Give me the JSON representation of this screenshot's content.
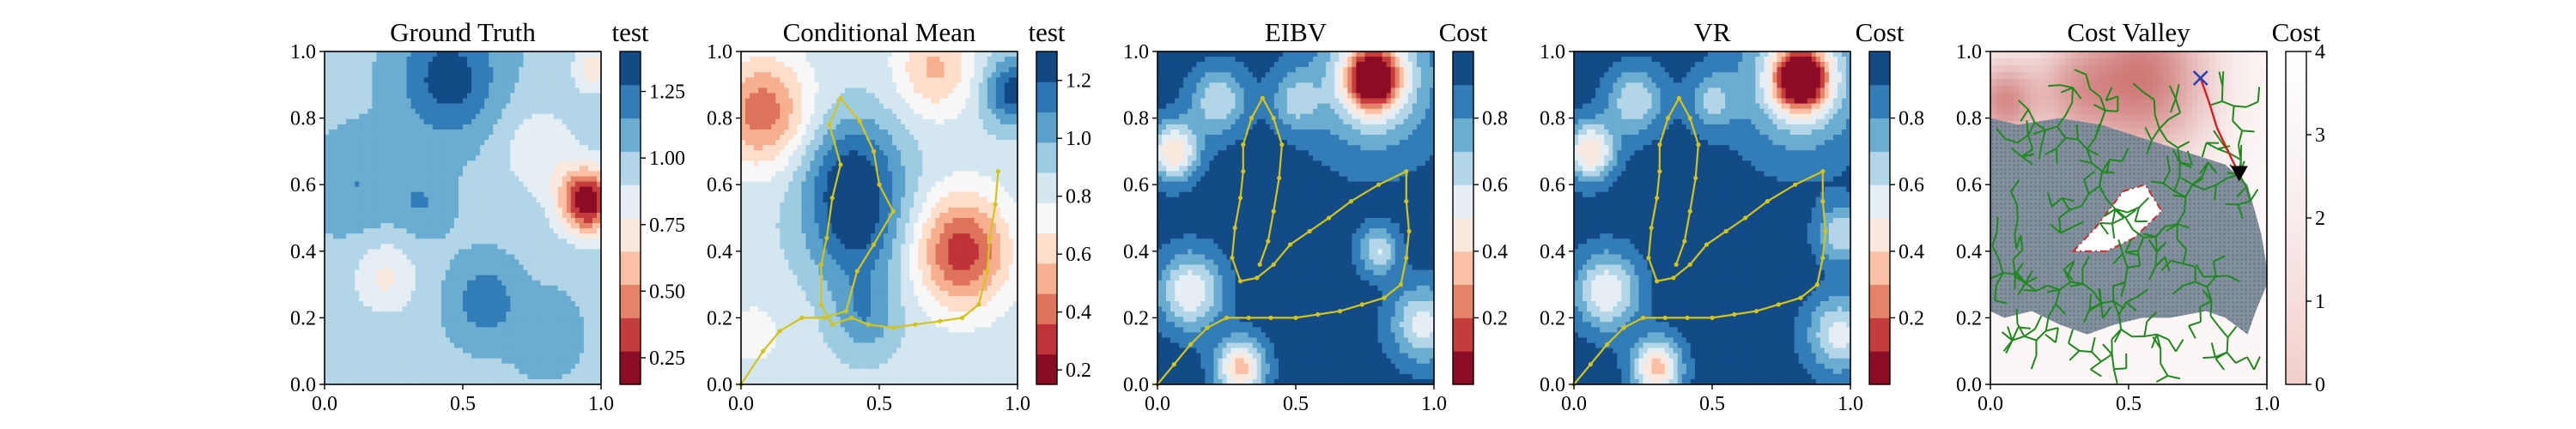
{
  "colors": {
    "rdbu": [
      "#67001f",
      "#b2182b",
      "#d6604d",
      "#f4a582",
      "#fddbc7",
      "#f7f7f7",
      "#d1e5f0",
      "#92c5de",
      "#4393c3",
      "#2166ac",
      "#053061"
    ],
    "path": "#d4c41a",
    "tree": "#1e8a1e",
    "obstacle": "#d62728",
    "mask": "#708090",
    "cost_low": "#ffffff",
    "cost_high": "#c0504d"
  },
  "icons": {
    "target": "x-marker-icon",
    "agent": "triangle-down-marker-icon"
  },
  "chart_data": [
    {
      "type": "heatmap",
      "title": "Ground Truth",
      "xlim": [
        0,
        1
      ],
      "ylim": [
        0,
        1
      ],
      "xticks": [
        "0.0",
        "0.5",
        "1.0"
      ],
      "yticks": [
        "0.0",
        "0.2",
        "0.4",
        "0.6",
        "0.8",
        "1.0"
      ],
      "colorbar": {
        "title": "test",
        "range": [
          0.15,
          1.4
        ],
        "levels": 10,
        "ticks": [
          {
            "value": 0.25,
            "label": "0.25"
          },
          {
            "value": 0.5,
            "label": "0.50"
          },
          {
            "value": 0.75,
            "label": "0.75"
          },
          {
            "value": 1.0,
            "label": "1.00"
          },
          {
            "value": 1.25,
            "label": "1.25"
          }
        ]
      }
    },
    {
      "type": "heatmap",
      "title": "Conditional Mean",
      "xlim": [
        0,
        1
      ],
      "ylim": [
        0,
        1
      ],
      "xticks": [
        "0.0",
        "0.5",
        "1.0"
      ],
      "yticks": [
        "0.0",
        "0.2",
        "0.4",
        "0.6",
        "0.8",
        "1.0"
      ],
      "colorbar": {
        "title": "test",
        "range": [
          0.15,
          1.3
        ],
        "levels": 11,
        "ticks": [
          {
            "value": 0.2,
            "label": "0.2"
          },
          {
            "value": 0.4,
            "label": "0.4"
          },
          {
            "value": 0.6,
            "label": "0.6"
          },
          {
            "value": 0.8,
            "label": "0.8"
          },
          {
            "value": 1.0,
            "label": "1.0"
          },
          {
            "value": 1.2,
            "label": "1.2"
          }
        ]
      },
      "path": [
        [
          0.0,
          0.0
        ],
        [
          0.08,
          0.1
        ],
        [
          0.14,
          0.16
        ],
        [
          0.22,
          0.2
        ],
        [
          0.3,
          0.2
        ],
        [
          0.38,
          0.22
        ],
        [
          0.42,
          0.34
        ],
        [
          0.48,
          0.42
        ],
        [
          0.55,
          0.52
        ],
        [
          0.5,
          0.6
        ],
        [
          0.48,
          0.7
        ],
        [
          0.43,
          0.79
        ],
        [
          0.36,
          0.86
        ],
        [
          0.32,
          0.78
        ],
        [
          0.36,
          0.66
        ],
        [
          0.33,
          0.56
        ],
        [
          0.31,
          0.44
        ],
        [
          0.29,
          0.36
        ],
        [
          0.29,
          0.24
        ],
        [
          0.33,
          0.18
        ],
        [
          0.4,
          0.2
        ],
        [
          0.46,
          0.18
        ],
        [
          0.55,
          0.17
        ],
        [
          0.63,
          0.18
        ],
        [
          0.72,
          0.19
        ],
        [
          0.8,
          0.2
        ],
        [
          0.86,
          0.24
        ],
        [
          0.89,
          0.34
        ],
        [
          0.9,
          0.44
        ],
        [
          0.92,
          0.54
        ],
        [
          0.93,
          0.64
        ]
      ]
    },
    {
      "type": "heatmap",
      "title": "EIBV",
      "xlim": [
        0,
        1
      ],
      "ylim": [
        0,
        1
      ],
      "xticks": [
        "0.0",
        "0.5",
        "1.0"
      ],
      "yticks": [
        "0.0",
        "0.2",
        "0.4",
        "0.6",
        "0.8",
        "1.0"
      ],
      "colorbar": {
        "title": "Cost",
        "range": [
          0.0,
          1.0
        ],
        "levels": 10,
        "ticks": [
          {
            "value": 0.2,
            "label": "0.2"
          },
          {
            "value": 0.4,
            "label": "0.4"
          },
          {
            "value": 0.6,
            "label": "0.6"
          },
          {
            "value": 0.8,
            "label": "0.8"
          }
        ]
      },
      "path": [
        [
          0.0,
          0.0
        ],
        [
          0.06,
          0.06
        ],
        [
          0.12,
          0.12
        ],
        [
          0.18,
          0.17
        ],
        [
          0.25,
          0.2
        ],
        [
          0.33,
          0.2
        ],
        [
          0.41,
          0.2
        ],
        [
          0.5,
          0.2
        ],
        [
          0.58,
          0.21
        ],
        [
          0.66,
          0.22
        ],
        [
          0.74,
          0.24
        ],
        [
          0.82,
          0.26
        ],
        [
          0.88,
          0.3
        ],
        [
          0.9,
          0.38
        ],
        [
          0.91,
          0.46
        ],
        [
          0.9,
          0.55
        ],
        [
          0.9,
          0.64
        ],
        [
          0.8,
          0.6
        ],
        [
          0.7,
          0.55
        ],
        [
          0.62,
          0.5
        ],
        [
          0.55,
          0.46
        ],
        [
          0.48,
          0.42
        ],
        [
          0.42,
          0.36
        ],
        [
          0.36,
          0.32
        ],
        [
          0.3,
          0.31
        ],
        [
          0.27,
          0.38
        ],
        [
          0.28,
          0.47
        ],
        [
          0.3,
          0.56
        ],
        [
          0.31,
          0.64
        ],
        [
          0.31,
          0.72
        ],
        [
          0.34,
          0.8
        ],
        [
          0.38,
          0.86
        ],
        [
          0.42,
          0.8
        ],
        [
          0.45,
          0.72
        ],
        [
          0.44,
          0.62
        ],
        [
          0.42,
          0.52
        ],
        [
          0.4,
          0.43
        ],
        [
          0.37,
          0.36
        ]
      ]
    },
    {
      "type": "heatmap",
      "title": "VR",
      "xlim": [
        0,
        1
      ],
      "ylim": [
        0,
        1
      ],
      "xticks": [
        "0.0",
        "0.5",
        "1.0"
      ],
      "yticks": [
        "0.0",
        "0.2",
        "0.4",
        "0.6",
        "0.8",
        "1.0"
      ],
      "colorbar": {
        "title": "Cost",
        "range": [
          0.0,
          1.0
        ],
        "levels": 10,
        "ticks": [
          {
            "value": 0.2,
            "label": "0.2"
          },
          {
            "value": 0.4,
            "label": "0.4"
          },
          {
            "value": 0.6,
            "label": "0.6"
          },
          {
            "value": 0.8,
            "label": "0.8"
          }
        ]
      },
      "path": [
        [
          0.0,
          0.0
        ],
        [
          0.06,
          0.06
        ],
        [
          0.12,
          0.12
        ],
        [
          0.18,
          0.17
        ],
        [
          0.25,
          0.2
        ],
        [
          0.33,
          0.2
        ],
        [
          0.41,
          0.2
        ],
        [
          0.5,
          0.2
        ],
        [
          0.58,
          0.21
        ],
        [
          0.66,
          0.22
        ],
        [
          0.74,
          0.24
        ],
        [
          0.82,
          0.26
        ],
        [
          0.88,
          0.3
        ],
        [
          0.9,
          0.38
        ],
        [
          0.91,
          0.46
        ],
        [
          0.9,
          0.55
        ],
        [
          0.9,
          0.64
        ],
        [
          0.8,
          0.6
        ],
        [
          0.7,
          0.55
        ],
        [
          0.62,
          0.5
        ],
        [
          0.55,
          0.46
        ],
        [
          0.48,
          0.42
        ],
        [
          0.42,
          0.36
        ],
        [
          0.36,
          0.32
        ],
        [
          0.3,
          0.31
        ],
        [
          0.27,
          0.38
        ],
        [
          0.28,
          0.47
        ],
        [
          0.3,
          0.56
        ],
        [
          0.31,
          0.64
        ],
        [
          0.31,
          0.72
        ],
        [
          0.34,
          0.8
        ],
        [
          0.38,
          0.86
        ],
        [
          0.42,
          0.8
        ],
        [
          0.45,
          0.72
        ],
        [
          0.44,
          0.62
        ],
        [
          0.42,
          0.52
        ],
        [
          0.4,
          0.43
        ],
        [
          0.37,
          0.36
        ]
      ]
    },
    {
      "type": "heatmap",
      "title": "Cost Valley",
      "xlim": [
        0,
        1
      ],
      "ylim": [
        0,
        1
      ],
      "xticks": [
        "0.0",
        "0.5",
        "1.0"
      ],
      "yticks": [
        "0.0",
        "0.2",
        "0.4",
        "0.6",
        "0.8",
        "1.0"
      ],
      "colorbar": {
        "title": "Cost",
        "range": [
          0,
          4
        ],
        "levels": 0,
        "ticks": [
          {
            "value": 0,
            "label": "0"
          },
          {
            "value": 1,
            "label": "1"
          },
          {
            "value": 2,
            "label": "2"
          },
          {
            "value": 3,
            "label": "3"
          },
          {
            "value": 4,
            "label": "4"
          }
        ]
      },
      "target": [
        0.76,
        0.92
      ],
      "agent": [
        0.9,
        0.63
      ],
      "obstacle": [
        [
          0.3,
          0.4
        ],
        [
          0.38,
          0.47
        ],
        [
          0.48,
          0.58
        ],
        [
          0.56,
          0.6
        ],
        [
          0.62,
          0.52
        ],
        [
          0.52,
          0.44
        ],
        [
          0.42,
          0.4
        ],
        [
          0.3,
          0.4
        ]
      ],
      "route": [
        [
          0.9,
          0.63
        ],
        [
          0.86,
          0.7
        ],
        [
          0.82,
          0.77
        ],
        [
          0.79,
          0.85
        ],
        [
          0.76,
          0.92
        ]
      ]
    }
  ]
}
